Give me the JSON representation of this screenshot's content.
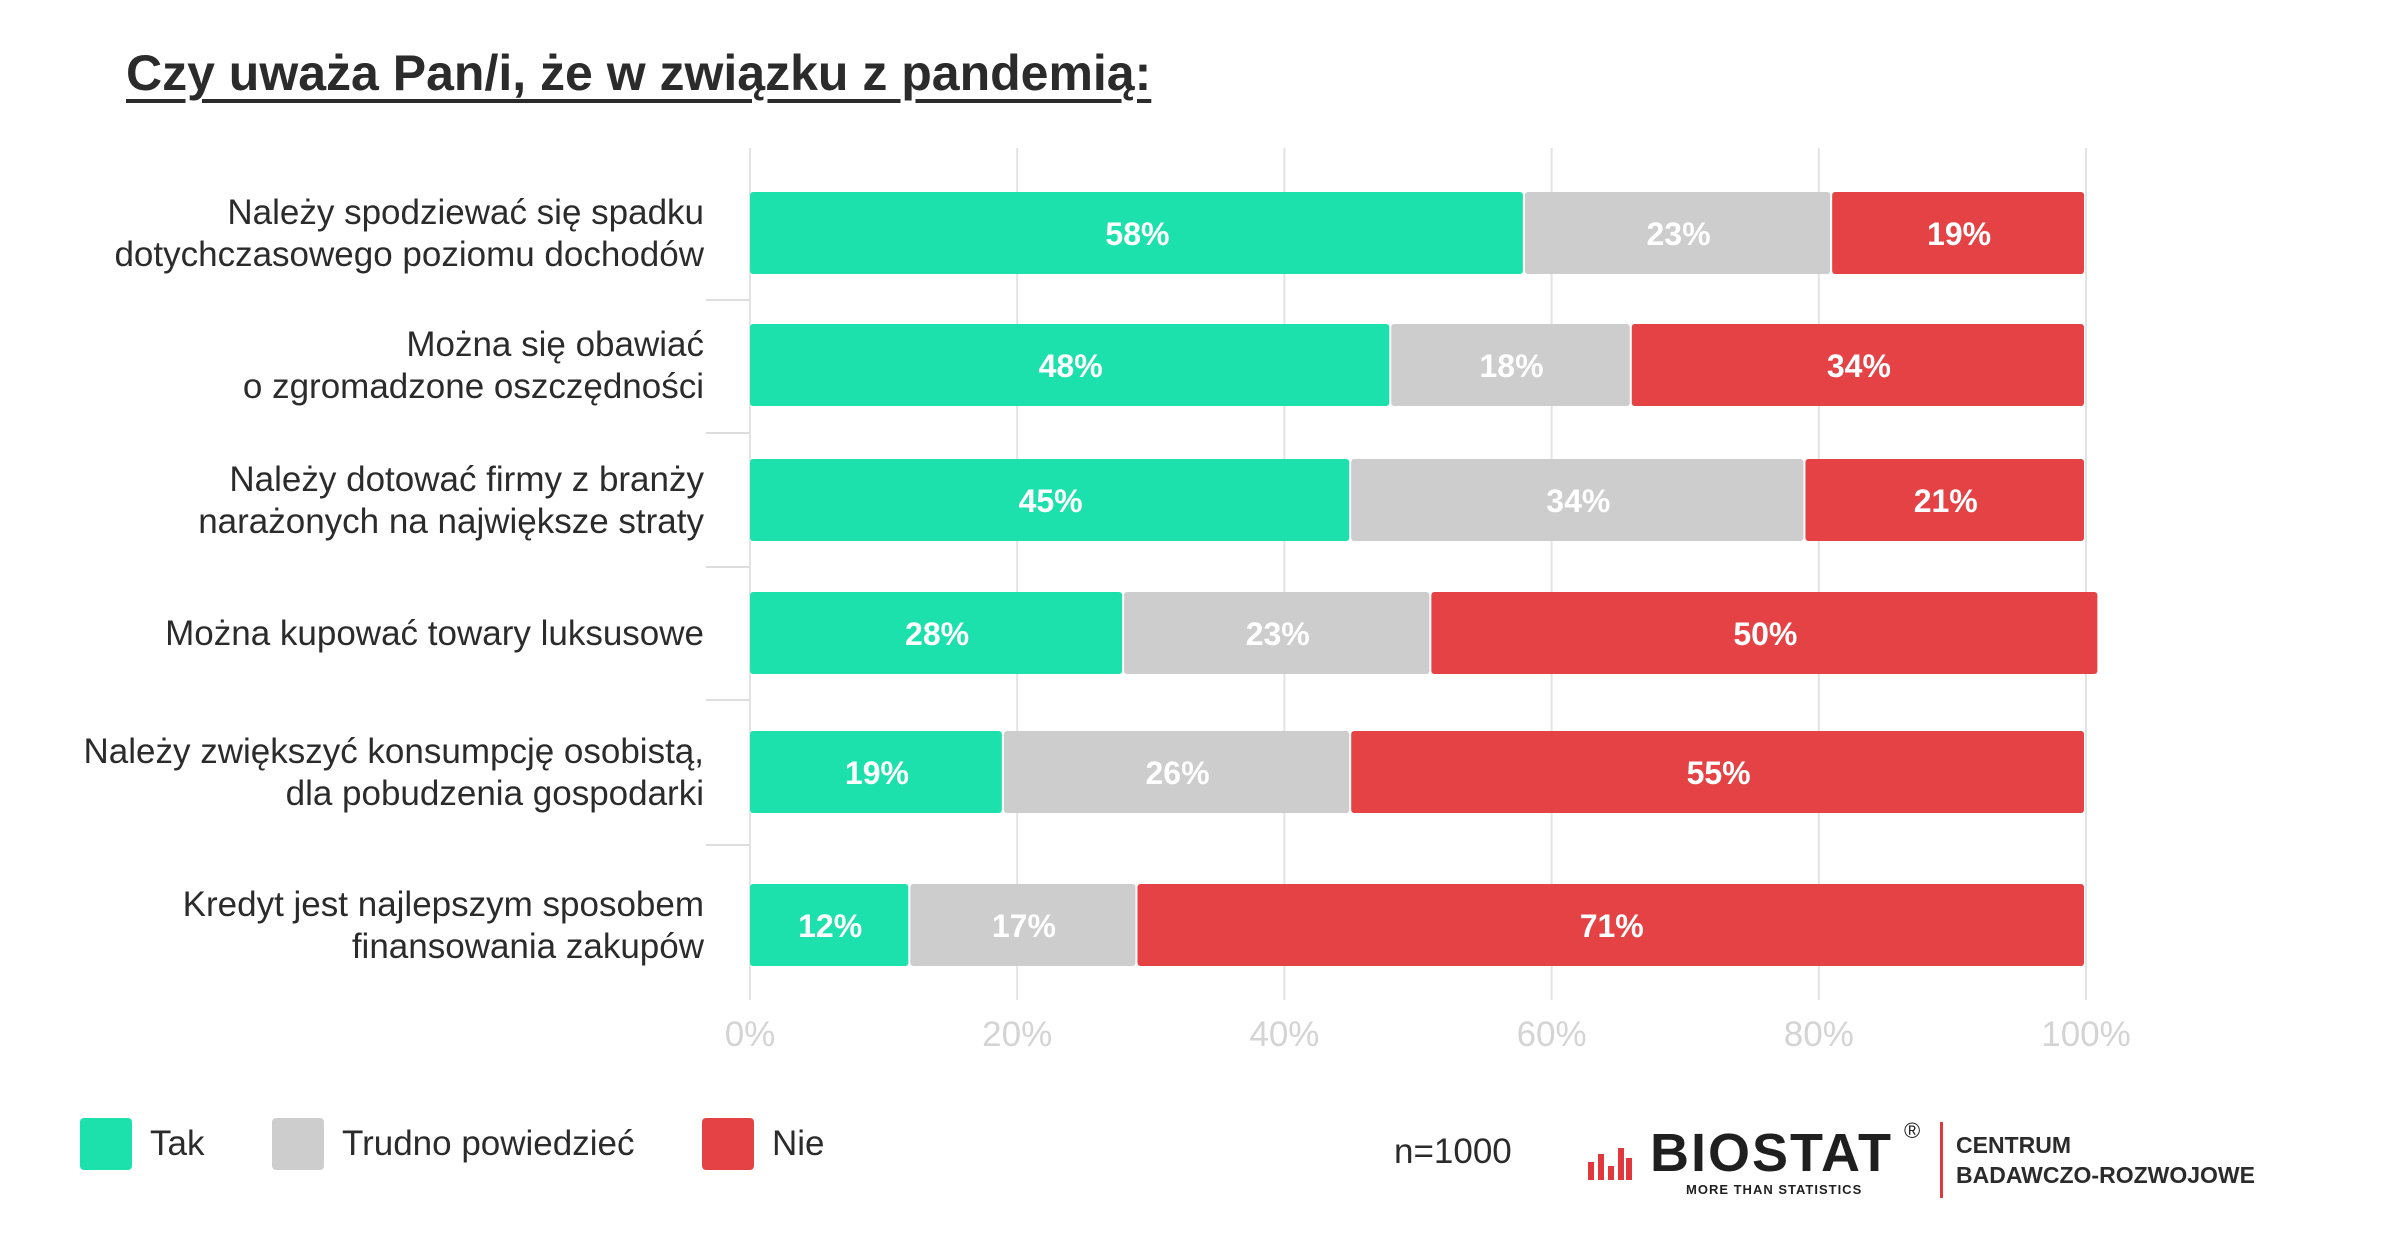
{
  "title": "Czy uważa Pan/i, że w związku z pandemią:",
  "chart_data": {
    "type": "bar",
    "orientation": "horizontal",
    "stacked": true,
    "categories": [
      [
        "Należy spodziewać się spadku",
        "dotychczasowego poziomu dochodów"
      ],
      [
        "Można się obawiać",
        "o zgromadzone oszczędności"
      ],
      [
        "Należy dotować firmy z branży",
        "narażonych na największe straty"
      ],
      [
        "Można kupować towary luksusowe"
      ],
      [
        "Należy zwiększyć konsumpcję osobistą,",
        "dla pobudzenia gospodarki"
      ],
      [
        "Kredyt jest najlepszym sposobem",
        "finansowania zakupów"
      ]
    ],
    "series": [
      {
        "name": "Tak",
        "color": "#1de1ad",
        "values": [
          58,
          48,
          45,
          28,
          19,
          12
        ]
      },
      {
        "name": "Trudno powiedzieć",
        "color": "#cdcdcd",
        "values": [
          23,
          18,
          34,
          23,
          26,
          17
        ]
      },
      {
        "name": "Nie",
        "color": "#e54245",
        "values": [
          19,
          34,
          21,
          50,
          55,
          71
        ]
      }
    ],
    "value_suffix": "%",
    "xlim": [
      0,
      100
    ],
    "xticks": [
      "0%",
      "20%",
      "40%",
      "60%",
      "80%",
      "100%"
    ],
    "grid": true,
    "legend_position": "bottom-left"
  },
  "footer": {
    "sample": "n=1000"
  },
  "logo": {
    "name": "BIOSTAT",
    "registered": "®",
    "tagline": "MORE THAN STATISTICS",
    "center_line1": "CENTRUM",
    "center_line2": "BADAWCZO-ROZWOJOWE"
  }
}
